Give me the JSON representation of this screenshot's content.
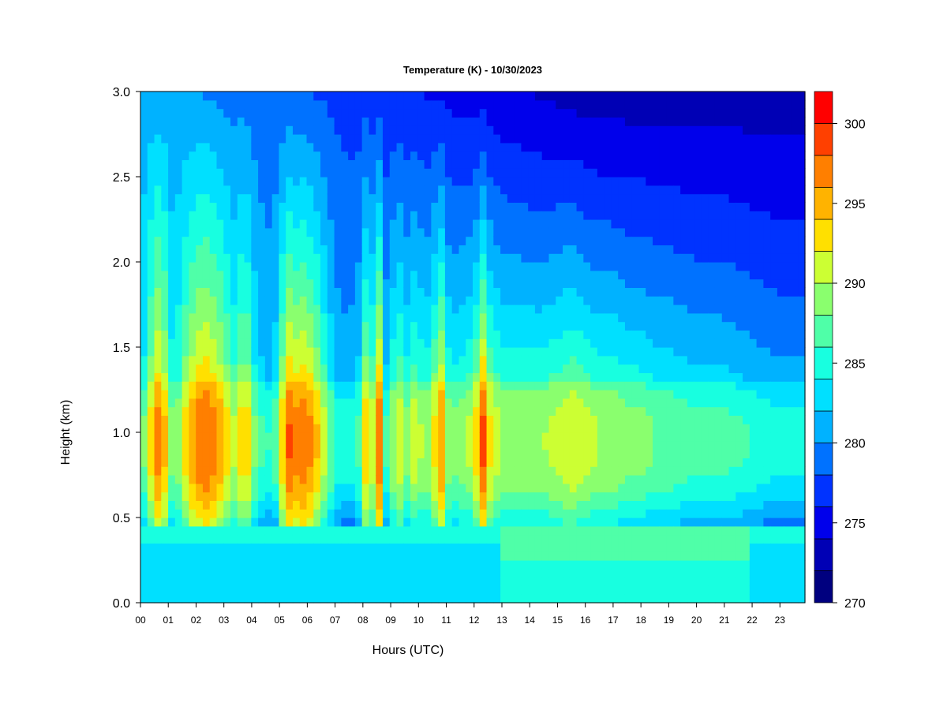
{
  "chart_data": {
    "type": "heatmap",
    "title": "Temperature (K) - 10/30/2023",
    "xlabel": "Hours (UTC)",
    "ylabel": "Height (km)",
    "x_ticks": [
      "00",
      "01",
      "02",
      "03",
      "04",
      "05",
      "06",
      "07",
      "08",
      "09",
      "10",
      "11",
      "12",
      "13",
      "14",
      "15",
      "16",
      "17",
      "18",
      "19",
      "20",
      "21",
      "22",
      "23"
    ],
    "y_ticks": [
      "0.0",
      "0.5",
      "1.0",
      "1.5",
      "2.0",
      "2.5",
      "3.0"
    ],
    "xlim": [
      0,
      23.9
    ],
    "ylim": [
      0,
      3.0
    ],
    "zlim": [
      270,
      302
    ],
    "colorbar": {
      "tick_labels": [
        "270",
        "275",
        "280",
        "285",
        "290",
        "295",
        "300"
      ],
      "levels": [
        270,
        272,
        274,
        276,
        278,
        280,
        282,
        284,
        286,
        288,
        290,
        292,
        294,
        296,
        298,
        300,
        302
      ],
      "colors": [
        "#00007F",
        "#0000B5",
        "#0000EB",
        "#0033FF",
        "#0072FF",
        "#00B2FF",
        "#00E0FF",
        "#18FFE0",
        "#4FFFA8",
        "#8AFF6E",
        "#CCFF33",
        "#FFE000",
        "#FFB300",
        "#FF7F00",
        "#FF4000",
        "#FF0000",
        "#CC0000",
        "#800000"
      ]
    },
    "time_profile": [
      {
        "x": 0.0,
        "t": 286
      },
      {
        "x": 0.3,
        "t": 292
      },
      {
        "x": 0.7,
        "t": 298
      },
      {
        "x": 1.0,
        "t": 292
      },
      {
        "x": 1.2,
        "t": 287
      },
      {
        "x": 1.5,
        "t": 292
      },
      {
        "x": 2.0,
        "t": 297
      },
      {
        "x": 2.4,
        "t": 298
      },
      {
        "x": 2.8,
        "t": 296
      },
      {
        "x": 3.1,
        "t": 293
      },
      {
        "x": 3.3,
        "t": 290
      },
      {
        "x": 3.6,
        "t": 293
      },
      {
        "x": 3.8,
        "t": 294
      },
      {
        "x": 4.2,
        "t": 287
      },
      {
        "x": 4.6,
        "t": 286
      },
      {
        "x": 5.0,
        "t": 288
      },
      {
        "x": 5.2,
        "t": 299
      },
      {
        "x": 5.6,
        "t": 297
      },
      {
        "x": 5.9,
        "t": 298
      },
      {
        "x": 6.3,
        "t": 295
      },
      {
        "x": 6.6,
        "t": 291
      },
      {
        "x": 7.0,
        "t": 286
      },
      {
        "x": 7.5,
        "t": 285
      },
      {
        "x": 7.9,
        "t": 287
      },
      {
        "x": 8.1,
        "t": 294
      },
      {
        "x": 8.4,
        "t": 291
      },
      {
        "x": 8.6,
        "t": 298
      },
      {
        "x": 8.8,
        "t": 286
      },
      {
        "x": 9.0,
        "t": 289
      },
      {
        "x": 9.3,
        "t": 292
      },
      {
        "x": 9.6,
        "t": 289
      },
      {
        "x": 9.9,
        "t": 292
      },
      {
        "x": 10.2,
        "t": 289
      },
      {
        "x": 10.5,
        "t": 291
      },
      {
        "x": 10.8,
        "t": 297
      },
      {
        "x": 11.0,
        "t": 290
      },
      {
        "x": 11.3,
        "t": 289
      },
      {
        "x": 11.7,
        "t": 290
      },
      {
        "x": 12.0,
        "t": 291
      },
      {
        "x": 12.3,
        "t": 299
      },
      {
        "x": 12.6,
        "t": 292
      },
      {
        "x": 13.0,
        "t": 290
      },
      {
        "x": 13.5,
        "t": 290
      },
      {
        "x": 14.0,
        "t": 290
      },
      {
        "x": 14.5,
        "t": 290
      },
      {
        "x": 15.0,
        "t": 291
      },
      {
        "x": 15.5,
        "t": 292
      },
      {
        "x": 16.0,
        "t": 291
      },
      {
        "x": 16.5,
        "t": 290
      },
      {
        "x": 17.0,
        "t": 290
      },
      {
        "x": 17.5,
        "t": 289
      },
      {
        "x": 18.0,
        "t": 289
      },
      {
        "x": 18.5,
        "t": 288
      },
      {
        "x": 19.0,
        "t": 288
      },
      {
        "x": 20.0,
        "t": 287
      },
      {
        "x": 21.0,
        "t": 287
      },
      {
        "x": 22.0,
        "t": 286
      },
      {
        "x": 23.0,
        "t": 285
      },
      {
        "x": 23.9,
        "t": 285
      }
    ]
  }
}
